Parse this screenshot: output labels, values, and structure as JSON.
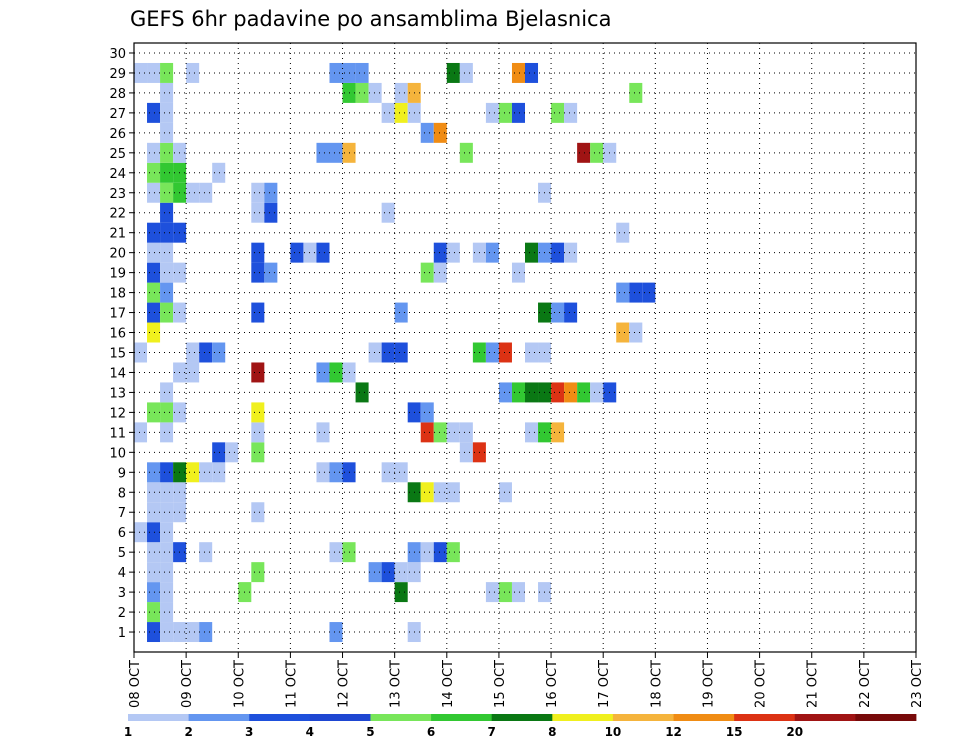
{
  "chart_data": {
    "type": "heatmap",
    "title": "GEFS 6hr padavine po ansamblima Bjelasnica",
    "x_labels": [
      "08 OCT",
      "09 OCT",
      "10 OCT",
      "11 OCT",
      "12 OCT",
      "13 OCT",
      "14 OCT",
      "15 OCT",
      "16 OCT",
      "17 OCT",
      "18 OCT",
      "19 OCT",
      "20 OCT",
      "21 OCT",
      "22 OCT",
      "23 OCT"
    ],
    "y_labels": [
      "1",
      "2",
      "3",
      "4",
      "5",
      "6",
      "7",
      "8",
      "9",
      "10",
      "11",
      "12",
      "13",
      "14",
      "15",
      "16",
      "17",
      "18",
      "19",
      "20",
      "21",
      "22",
      "23",
      "24",
      "25",
      "26",
      "27",
      "28",
      "29",
      "30"
    ],
    "ylim": [
      0,
      30
    ],
    "grid": true,
    "colorbar": {
      "labels": [
        "1",
        "2",
        "3",
        "4",
        "5",
        "6",
        "7",
        "8",
        "10",
        "12",
        "15",
        "20"
      ],
      "colors": [
        "#b4c8f4",
        "#6496f0",
        "#1e50dc",
        "#1e46d2",
        "#78e65a",
        "#32c832",
        "#0a7814",
        "#f0f01e",
        "#f5b43c",
        "#f08c14",
        "#dc3214",
        "#a01414",
        "#780a0a"
      ]
    },
    "cells": [
      [
        1,
        1,
        3
      ],
      [
        2,
        1,
        1
      ],
      [
        3,
        1,
        1
      ],
      [
        4,
        1,
        1
      ],
      [
        5,
        1,
        2
      ],
      [
        15,
        1,
        2
      ],
      [
        21,
        1,
        1
      ],
      [
        1,
        2,
        5
      ],
      [
        2,
        2,
        1
      ],
      [
        1,
        3,
        2
      ],
      [
        2,
        3,
        1
      ],
      [
        -2,
        3,
        1
      ],
      [
        -1,
        3,
        1
      ],
      [
        8,
        3,
        5
      ],
      [
        20,
        3,
        7
      ],
      [
        27,
        3,
        1
      ],
      [
        28,
        3,
        5
      ],
      [
        29,
        3,
        1
      ],
      [
        31,
        3,
        1
      ],
      [
        1,
        4,
        1
      ],
      [
        2,
        4,
        1
      ],
      [
        9,
        4,
        5
      ],
      [
        18,
        4,
        2
      ],
      [
        19,
        4,
        3
      ],
      [
        20,
        4,
        1
      ],
      [
        21,
        4,
        1
      ],
      [
        1,
        5,
        1
      ],
      [
        2,
        5,
        1
      ],
      [
        3,
        5,
        3
      ],
      [
        5,
        5,
        1
      ],
      [
        -2,
        5,
        1
      ],
      [
        -1,
        5,
        1
      ],
      [
        15,
        5,
        1
      ],
      [
        16,
        5,
        5
      ],
      [
        21,
        5,
        2
      ],
      [
        22,
        5,
        1
      ],
      [
        23,
        5,
        3
      ],
      [
        24,
        5,
        5
      ],
      [
        -1,
        6,
        1
      ],
      [
        0,
        6,
        1
      ],
      [
        1,
        6,
        3
      ],
      [
        2,
        6,
        1
      ],
      [
        1,
        7,
        1
      ],
      [
        2,
        7,
        1
      ],
      [
        3,
        7,
        1
      ],
      [
        9,
        7,
        1
      ],
      [
        1,
        8,
        1
      ],
      [
        2,
        8,
        1
      ],
      [
        3,
        8,
        1
      ],
      [
        -2,
        8,
        2
      ],
      [
        21,
        8,
        7
      ],
      [
        22,
        8,
        8
      ],
      [
        23,
        8,
        1
      ],
      [
        24,
        8,
        1
      ],
      [
        28,
        8,
        1
      ],
      [
        1,
        9,
        2
      ],
      [
        2,
        9,
        3
      ],
      [
        3,
        9,
        7
      ],
      [
        4,
        9,
        8
      ],
      [
        5,
        9,
        1
      ],
      [
        6,
        9,
        1
      ],
      [
        14,
        9,
        1
      ],
      [
        15,
        9,
        2
      ],
      [
        16,
        9,
        3
      ],
      [
        19,
        9,
        1
      ],
      [
        20,
        9,
        1
      ],
      [
        6,
        10,
        3
      ],
      [
        7,
        10,
        1
      ],
      [
        9,
        10,
        5
      ],
      [
        -2,
        10,
        1
      ],
      [
        25,
        10,
        1
      ],
      [
        26,
        10,
        11
      ],
      [
        -1,
        11,
        1
      ],
      [
        0,
        11,
        1
      ],
      [
        2,
        11,
        1
      ],
      [
        9,
        11,
        1
      ],
      [
        -2,
        11,
        1
      ],
      [
        14,
        11,
        1
      ],
      [
        22,
        11,
        11
      ],
      [
        23,
        11,
        5
      ],
      [
        24,
        11,
        1
      ],
      [
        25,
        11,
        1
      ],
      [
        30,
        11,
        1
      ],
      [
        31,
        11,
        6
      ],
      [
        32,
        11,
        9
      ],
      [
        1,
        12,
        5
      ],
      [
        2,
        12,
        5
      ],
      [
        3,
        12,
        1
      ],
      [
        9,
        12,
        8
      ],
      [
        21,
        12,
        3
      ],
      [
        22,
        12,
        2
      ],
      [
        -1,
        13,
        1
      ],
      [
        2,
        13,
        1
      ],
      [
        -2,
        13,
        5
      ],
      [
        17,
        13,
        7
      ],
      [
        28,
        13,
        2
      ],
      [
        29,
        13,
        6
      ],
      [
        30,
        13,
        7
      ],
      [
        31,
        13,
        7
      ],
      [
        32,
        13,
        11
      ],
      [
        33,
        13,
        10
      ],
      [
        34,
        13,
        6
      ],
      [
        35,
        13,
        1
      ],
      [
        36,
        13,
        3
      ],
      [
        3,
        14,
        1
      ],
      [
        4,
        14,
        1
      ],
      [
        9,
        14,
        12
      ],
      [
        14,
        14,
        2
      ],
      [
        15,
        14,
        6
      ],
      [
        16,
        14,
        1
      ],
      [
        -1,
        15,
        1
      ],
      [
        0,
        15,
        1
      ],
      [
        4,
        15,
        1
      ],
      [
        5,
        15,
        3
      ],
      [
        6,
        15,
        2
      ],
      [
        18,
        15,
        1
      ],
      [
        19,
        15,
        3
      ],
      [
        20,
        15,
        3
      ],
      [
        26,
        15,
        6
      ],
      [
        27,
        15,
        2
      ],
      [
        28,
        15,
        11
      ],
      [
        30,
        15,
        1
      ],
      [
        31,
        15,
        1
      ],
      [
        -2,
        16,
        1
      ],
      [
        -1,
        16,
        1
      ],
      [
        1,
        16,
        8
      ],
      [
        37,
        16,
        9
      ],
      [
        38,
        16,
        1
      ],
      [
        1,
        17,
        3
      ],
      [
        2,
        17,
        5
      ],
      [
        3,
        17,
        1
      ],
      [
        9,
        17,
        3
      ],
      [
        20,
        17,
        2
      ],
      [
        31,
        17,
        7
      ],
      [
        32,
        17,
        2
      ],
      [
        33,
        17,
        3
      ],
      [
        1,
        18,
        5
      ],
      [
        2,
        18,
        2
      ],
      [
        37,
        18,
        2
      ],
      [
        38,
        18,
        3
      ],
      [
        39,
        18,
        3
      ],
      [
        1,
        19,
        3
      ],
      [
        2,
        19,
        1
      ],
      [
        3,
        19,
        1
      ],
      [
        9,
        19,
        3
      ],
      [
        10,
        19,
        2
      ],
      [
        22,
        19,
        5
      ],
      [
        23,
        19,
        1
      ],
      [
        29,
        19,
        1
      ],
      [
        1,
        20,
        1
      ],
      [
        2,
        20,
        1
      ],
      [
        12,
        20,
        3
      ],
      [
        13,
        20,
        1
      ],
      [
        14,
        20,
        3
      ],
      [
        9,
        20,
        3
      ],
      [
        23,
        20,
        3
      ],
      [
        24,
        20,
        1
      ],
      [
        26,
        20,
        1
      ],
      [
        27,
        20,
        2
      ],
      [
        30,
        20,
        7
      ],
      [
        31,
        20,
        2
      ],
      [
        32,
        20,
        3
      ],
      [
        33,
        20,
        1
      ],
      [
        1,
        21,
        3
      ],
      [
        2,
        21,
        3
      ],
      [
        3,
        21,
        3
      ],
      [
        37,
        21,
        1
      ],
      [
        2,
        22,
        3
      ],
      [
        9,
        22,
        1
      ],
      [
        10,
        22,
        3
      ],
      [
        19,
        22,
        1
      ],
      [
        1,
        23,
        1
      ],
      [
        2,
        23,
        5
      ],
      [
        3,
        23,
        6
      ],
      [
        4,
        23,
        1
      ],
      [
        5,
        23,
        1
      ],
      [
        9,
        23,
        1
      ],
      [
        10,
        23,
        2
      ],
      [
        31,
        23,
        1
      ],
      [
        1,
        24,
        5
      ],
      [
        2,
        24,
        6
      ],
      [
        3,
        24,
        6
      ],
      [
        6,
        24,
        1
      ],
      [
        -1,
        25,
        1
      ],
      [
        1,
        25,
        1
      ],
      [
        2,
        25,
        5
      ],
      [
        3,
        25,
        1
      ],
      [
        14,
        25,
        2
      ],
      [
        15,
        25,
        2
      ],
      [
        16,
        25,
        9
      ],
      [
        25,
        25,
        5
      ],
      [
        34,
        25,
        12
      ],
      [
        35,
        25,
        5
      ],
      [
        36,
        25,
        1
      ],
      [
        2,
        26,
        1
      ],
      [
        22,
        26,
        2
      ],
      [
        23,
        26,
        10
      ],
      [
        -1,
        27,
        1
      ],
      [
        1,
        27,
        3
      ],
      [
        2,
        27,
        1
      ],
      [
        -2,
        27,
        3
      ],
      [
        -1,
        27,
        7
      ],
      [
        19,
        27,
        1
      ],
      [
        20,
        27,
        8
      ],
      [
        21,
        27,
        1
      ],
      [
        27,
        27,
        1
      ],
      [
        28,
        27,
        5
      ],
      [
        29,
        27,
        3
      ],
      [
        32,
        27,
        5
      ],
      [
        33,
        27,
        1
      ],
      [
        2,
        28,
        1
      ],
      [
        16,
        28,
        6
      ],
      [
        17,
        28,
        5
      ],
      [
        18,
        28,
        1
      ],
      [
        20,
        28,
        1
      ],
      [
        21,
        28,
        9
      ],
      [
        38,
        28,
        5
      ],
      [
        -1,
        29,
        1
      ],
      [
        0,
        29,
        1
      ],
      [
        1,
        29,
        1
      ],
      [
        2,
        29,
        5
      ],
      [
        4,
        29,
        1
      ],
      [
        -2,
        29,
        1
      ],
      [
        -1,
        29,
        3
      ],
      [
        15,
        29,
        2
      ],
      [
        16,
        29,
        2
      ],
      [
        17,
        29,
        2
      ],
      [
        24,
        29,
        7
      ],
      [
        25,
        29,
        1
      ],
      [
        29,
        29,
        10
      ],
      [
        30,
        29,
        3
      ]
    ]
  }
}
